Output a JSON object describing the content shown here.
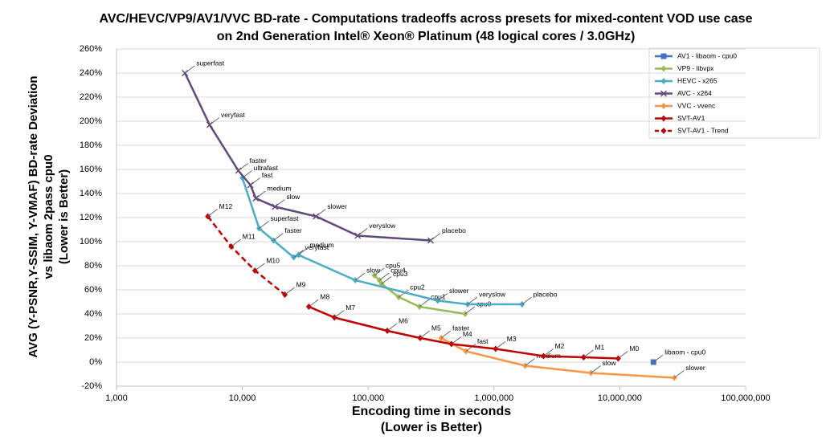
{
  "chart_data": {
    "type": "line",
    "title_lines": [
      "AVC/HEVC/VP9/AV1/VVC BD-rate - Computations tradeoffs across presets for mixed-content VOD use case",
      "on 2nd Generation  Intel®  Xeon® Platinum (48 logical cores / 3.0GHz)"
    ],
    "x_label_lines": [
      "Encoding time in seconds",
      "(Lower is Better)"
    ],
    "y_label_lines": [
      "AVG (Y-PSNR,Y-SSIM, Y-VMAF) BD-rate Deviation",
      "vs libaom 2pass cpu0",
      "(Lower is Better)"
    ],
    "x_log": true,
    "grid": true,
    "legend_position": "top-right",
    "xlim": [
      1000,
      100000000
    ],
    "xticks": [
      {
        "value": 1000,
        "label": "1,000"
      },
      {
        "value": 10000,
        "label": "10,000"
      },
      {
        "value": 100000,
        "label": "100,000"
      },
      {
        "value": 1000000,
        "label": "1,000,000"
      },
      {
        "value": 10000000,
        "label": "10,000,000"
      },
      {
        "value": 100000000,
        "label": "100,000,000"
      }
    ],
    "ylim": [
      -20,
      260
    ],
    "yticks": [
      {
        "value": -20,
        "label": "-20%"
      },
      {
        "value": 0,
        "label": "0%"
      },
      {
        "value": 20,
        "label": "20%"
      },
      {
        "value": 40,
        "label": "40%"
      },
      {
        "value": 60,
        "label": "60%"
      },
      {
        "value": 80,
        "label": "80%"
      },
      {
        "value": 100,
        "label": "100%"
      },
      {
        "value": 120,
        "label": "120%"
      },
      {
        "value": 140,
        "label": "140%"
      },
      {
        "value": 160,
        "label": "160%"
      },
      {
        "value": 180,
        "label": "180%"
      },
      {
        "value": 200,
        "label": "200%"
      },
      {
        "value": 220,
        "label": "220%"
      },
      {
        "value": 240,
        "label": "240%"
      },
      {
        "value": 260,
        "label": "260%"
      }
    ],
    "series": [
      {
        "name": "AV1 - libaom - cpu0",
        "color": "#4472c4",
        "marker": "square",
        "dashed": false,
        "x": [
          18500000
        ],
        "values": [
          0
        ],
        "point_labels": [
          "libaom - cpu0"
        ]
      },
      {
        "name": "VP9 - libvpx",
        "color": "#9bbb59",
        "marker": "diamond",
        "dashed": false,
        "x": [
          112000,
          123000,
          128000,
          175000,
          256000,
          590000
        ],
        "values": [
          72,
          68,
          65,
          54,
          46,
          40
        ],
        "point_labels": [
          "cpu5",
          "cpu4",
          "cpu3",
          "cpu2",
          "cpu1",
          "cpu0"
        ]
      },
      {
        "name": "HEVC - x265",
        "color": "#4bacc6",
        "marker": "diamond",
        "dashed": false,
        "x": [
          10000,
          13600,
          17700,
          25600,
          27900,
          79000,
          358000,
          617000,
          1670000
        ],
        "values": [
          153,
          111,
          101,
          87,
          89,
          68,
          51,
          48,
          48
        ],
        "point_labels": [
          "ultrafast",
          "superfast",
          "faster",
          "veryfast",
          "medium",
          "slow",
          "slower",
          "veryslow",
          "placebo"
        ]
      },
      {
        "name": "AVC - x264",
        "color": "#604a7b",
        "marker": "x",
        "dashed": false,
        "x": [
          3500,
          5500,
          9300,
          11600,
          12800,
          18200,
          38500,
          82600,
          314000
        ],
        "values": [
          240,
          197,
          159,
          147,
          136,
          129,
          121,
          105,
          101
        ],
        "point_labels": [
          "superfast",
          "veryfast",
          "faster",
          "fast",
          "medium",
          "slow",
          "slower",
          "veryslow",
          "placebo"
        ]
      },
      {
        "name": "VVC - vvenc",
        "color": "#f79646",
        "marker": "diamond",
        "dashed": false,
        "x": [
          380000,
          598000,
          1770000,
          5900000,
          27100000
        ],
        "values": [
          20,
          9,
          -3,
          -9,
          -13
        ],
        "point_labels": [
          "faster",
          "fast",
          "medium",
          "slow",
          "slower"
        ]
      },
      {
        "name": "SVT-AV1",
        "color": "#c00000",
        "marker": "diamond",
        "dashed": false,
        "x": [
          33800,
          54000,
          142000,
          259000,
          459000,
          1030000,
          2480000,
          5160000,
          9710000
        ],
        "values": [
          46,
          37,
          26,
          20,
          15,
          11,
          5,
          4,
          3
        ],
        "point_labels": [
          "M8",
          "M7",
          "M6",
          "M5",
          "M4",
          "M3",
          "M2",
          "M1",
          "M0"
        ]
      },
      {
        "name": "SVT-AV1 - Trend",
        "color": "#c00000",
        "marker": "diamond",
        "dashed": true,
        "x": [
          5320,
          8150,
          12600,
          21800
        ],
        "values": [
          121,
          96,
          76,
          56
        ],
        "point_labels": [
          "M12",
          "M11",
          "M10",
          "M9"
        ]
      }
    ]
  }
}
